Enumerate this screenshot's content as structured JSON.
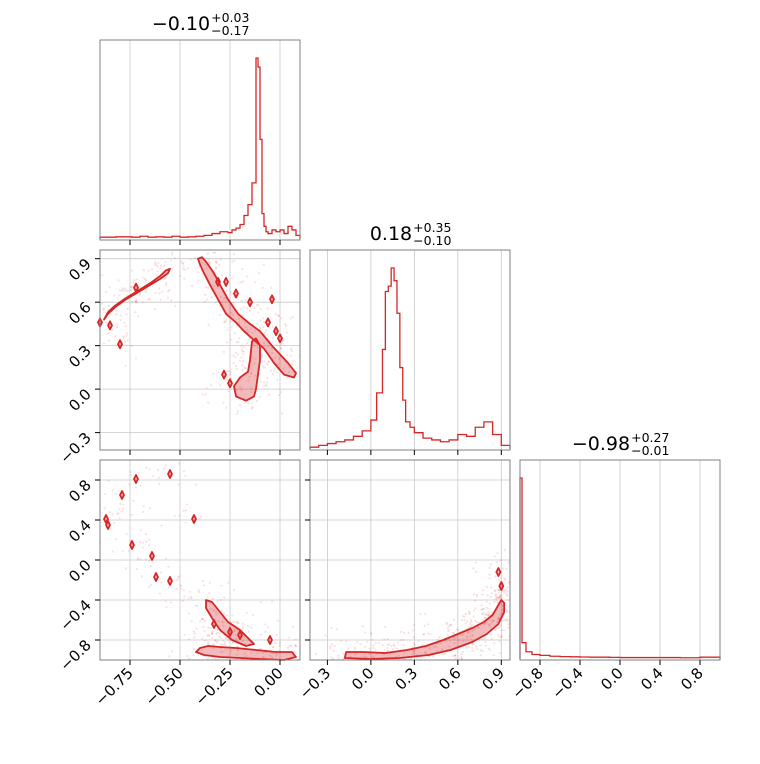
{
  "colors": {
    "accent": "#d62728",
    "grid": "#c8c8c8",
    "frame": "#808080"
  },
  "chart_data": {
    "type": "corner",
    "parameters": 3,
    "grid": true,
    "titles": [
      {
        "median": "−0.10",
        "plus": "+0.03",
        "minus": "−0.17"
      },
      {
        "median": "0.18",
        "plus": "+0.35",
        "minus": "−0.10"
      },
      {
        "median": "−0.98",
        "plus": "+0.27",
        "minus": "−0.01"
      }
    ],
    "ranges": [
      [
        -0.9,
        0.1
      ],
      [
        -0.42,
        0.96
      ],
      [
        -1.0,
        1.0
      ]
    ],
    "ticks": [
      {
        "values": [
          -0.75,
          -0.5,
          -0.25,
          0.0
        ],
        "labels": [
          "−0.75",
          "−0.50",
          "−0.25",
          "0.00"
        ]
      },
      {
        "values": [
          -0.3,
          0.0,
          0.3,
          0.6,
          0.9
        ],
        "labels": [
          "−0.3",
          "0.0",
          "0.3",
          "0.6",
          "0.9"
        ]
      },
      {
        "values": [
          -0.8,
          -0.4,
          0.0,
          0.4,
          0.8
        ],
        "labels": [
          "−0.8",
          "−0.4",
          "0.0",
          "0.4",
          "0.8"
        ]
      }
    ],
    "histograms": [
      {
        "param": 0,
        "edges": [
          -0.9,
          -0.86,
          -0.82,
          -0.78,
          -0.74,
          -0.7,
          -0.66,
          -0.62,
          -0.58,
          -0.54,
          -0.5,
          -0.46,
          -0.42,
          -0.38,
          -0.34,
          -0.3,
          -0.26,
          -0.24,
          -0.22,
          -0.2,
          -0.18,
          -0.16,
          -0.14,
          -0.12,
          -0.11,
          -0.1,
          -0.09,
          -0.08,
          -0.07,
          -0.06,
          -0.04,
          -0.02,
          0.0,
          0.02,
          0.04,
          0.06,
          0.08,
          0.1
        ],
        "counts": [
          0.01,
          0.01,
          0.012,
          0.012,
          0.01,
          0.015,
          0.01,
          0.012,
          0.01,
          0.015,
          0.01,
          0.012,
          0.015,
          0.02,
          0.03,
          0.04,
          0.035,
          0.05,
          0.06,
          0.08,
          0.13,
          0.19,
          0.31,
          1.0,
          0.95,
          0.55,
          0.14,
          0.07,
          0.04,
          0.03,
          0.05,
          0.04,
          0.05,
          0.03,
          0.07,
          0.05,
          0.02
        ]
      },
      {
        "param": 1,
        "edges": [
          -0.42,
          -0.36,
          -0.3,
          -0.24,
          -0.18,
          -0.12,
          -0.06,
          0.0,
          0.04,
          0.08,
          0.1,
          0.12,
          0.14,
          0.16,
          0.18,
          0.2,
          0.22,
          0.24,
          0.27,
          0.3,
          0.36,
          0.42,
          0.48,
          0.54,
          0.6,
          0.66,
          0.72,
          0.78,
          0.84,
          0.9,
          0.96
        ],
        "counts": [
          0.01,
          0.02,
          0.03,
          0.04,
          0.05,
          0.07,
          0.1,
          0.16,
          0.31,
          0.55,
          0.87,
          0.9,
          1.0,
          0.93,
          0.75,
          0.45,
          0.27,
          0.15,
          0.12,
          0.09,
          0.06,
          0.05,
          0.04,
          0.05,
          0.08,
          0.07,
          0.12,
          0.15,
          0.08,
          0.02
        ]
      },
      {
        "param": 2,
        "edges": [
          -1.0,
          -0.98,
          -0.94,
          -0.88,
          -0.8,
          -0.7,
          -0.6,
          -0.5,
          -0.4,
          -0.3,
          -0.2,
          -0.1,
          0.0,
          0.2,
          0.4,
          0.6,
          0.8,
          1.0
        ],
        "counts": [
          1.0,
          0.09,
          0.04,
          0.025,
          0.02,
          0.015,
          0.013,
          0.012,
          0.011,
          0.01,
          0.01,
          0.009,
          0.008,
          0.008,
          0.008,
          0.007,
          0.01
        ]
      }
    ],
    "contours": [
      {
        "x_param": 0,
        "y_param": 1,
        "regions": [
          [
            [
              -0.88,
              0.48
            ],
            [
              -0.86,
              0.53
            ],
            [
              -0.83,
              0.57
            ],
            [
              -0.78,
              0.62
            ],
            [
              -0.72,
              0.67
            ],
            [
              -0.65,
              0.73
            ],
            [
              -0.6,
              0.78
            ],
            [
              -0.57,
              0.82
            ],
            [
              -0.55,
              0.83
            ],
            [
              -0.56,
              0.8
            ],
            [
              -0.6,
              0.76
            ],
            [
              -0.66,
              0.71
            ],
            [
              -0.72,
              0.66
            ],
            [
              -0.77,
              0.62
            ],
            [
              -0.82,
              0.57
            ],
            [
              -0.86,
              0.52
            ]
          ],
          [
            [
              -0.41,
              0.9
            ],
            [
              -0.39,
              0.91
            ],
            [
              -0.37,
              0.88
            ],
            [
              -0.33,
              0.8
            ],
            [
              -0.3,
              0.72
            ],
            [
              -0.26,
              0.62
            ],
            [
              -0.21,
              0.52
            ],
            [
              -0.15,
              0.45
            ],
            [
              -0.1,
              0.4
            ],
            [
              -0.04,
              0.3
            ],
            [
              0.04,
              0.18
            ],
            [
              0.08,
              0.11
            ],
            [
              0.07,
              0.08
            ],
            [
              0.02,
              0.1
            ],
            [
              -0.03,
              0.18
            ],
            [
              -0.08,
              0.28
            ],
            [
              -0.14,
              0.35
            ],
            [
              -0.18,
              0.4
            ],
            [
              -0.22,
              0.46
            ],
            [
              -0.27,
              0.52
            ],
            [
              -0.31,
              0.62
            ],
            [
              -0.35,
              0.72
            ],
            [
              -0.38,
              0.8
            ],
            [
              -0.4,
              0.86
            ]
          ],
          [
            [
              -0.14,
              0.33
            ],
            [
              -0.12,
              0.35
            ],
            [
              -0.1,
              0.3
            ],
            [
              -0.1,
              0.2
            ],
            [
              -0.11,
              0.1
            ],
            [
              -0.12,
              0.0
            ],
            [
              -0.13,
              -0.05
            ],
            [
              -0.17,
              -0.08
            ],
            [
              -0.22,
              -0.05
            ],
            [
              -0.23,
              0.02
            ],
            [
              -0.2,
              0.08
            ],
            [
              -0.16,
              0.12
            ],
            [
              -0.15,
              0.2
            ]
          ]
        ],
        "islands": [
          [
            -0.9,
            0.46
          ],
          [
            -0.8,
            0.31
          ],
          [
            -0.85,
            0.44
          ],
          [
            -0.72,
            0.7
          ],
          [
            -0.31,
            0.74
          ],
          [
            -0.27,
            0.74
          ],
          [
            -0.22,
            0.66
          ],
          [
            -0.15,
            0.6
          ],
          [
            -0.04,
            0.62
          ],
          [
            -0.06,
            0.46
          ],
          [
            -0.02,
            0.4
          ],
          [
            0.0,
            0.35
          ],
          [
            -0.28,
            0.1
          ],
          [
            -0.25,
            0.04
          ]
        ],
        "scatter": {
          "seed": 7,
          "count": 420
        }
      },
      {
        "x_param": 0,
        "y_param": 2,
        "regions": [
          [
            [
              -0.4,
              -0.88
            ],
            [
              -0.36,
              -0.86
            ],
            [
              -0.3,
              -0.87
            ],
            [
              -0.22,
              -0.88
            ],
            [
              -0.12,
              -0.9
            ],
            [
              -0.02,
              -0.92
            ],
            [
              0.06,
              -0.92
            ],
            [
              0.08,
              -0.97
            ],
            [
              0.02,
              -1.0
            ],
            [
              -0.1,
              -0.99
            ],
            [
              -0.2,
              -0.98
            ],
            [
              -0.3,
              -0.97
            ],
            [
              -0.38,
              -0.95
            ],
            [
              -0.42,
              -0.92
            ]
          ],
          [
            [
              -0.37,
              -0.4
            ],
            [
              -0.34,
              -0.42
            ],
            [
              -0.3,
              -0.52
            ],
            [
              -0.26,
              -0.62
            ],
            [
              -0.2,
              -0.7
            ],
            [
              -0.16,
              -0.78
            ],
            [
              -0.13,
              -0.84
            ],
            [
              -0.17,
              -0.86
            ],
            [
              -0.24,
              -0.8
            ],
            [
              -0.3,
              -0.7
            ],
            [
              -0.34,
              -0.58
            ],
            [
              -0.37,
              -0.48
            ]
          ]
        ],
        "islands": [
          [
            -0.87,
            0.41
          ],
          [
            -0.86,
            0.35
          ],
          [
            -0.79,
            0.65
          ],
          [
            -0.72,
            0.81
          ],
          [
            -0.55,
            0.86
          ],
          [
            -0.74,
            0.15
          ],
          [
            -0.64,
            0.04
          ],
          [
            -0.62,
            -0.17
          ],
          [
            -0.55,
            -0.21
          ],
          [
            -0.43,
            0.41
          ],
          [
            -0.33,
            -0.64
          ],
          [
            -0.25,
            -0.72
          ],
          [
            -0.2,
            -0.75
          ],
          [
            -0.05,
            -0.8
          ]
        ],
        "scatter": {
          "seed": 19,
          "count": 380
        }
      },
      {
        "x_param": 1,
        "y_param": 2,
        "regions": [
          [
            [
              -0.17,
              -0.92
            ],
            [
              -0.05,
              -0.92
            ],
            [
              0.1,
              -0.93
            ],
            [
              0.25,
              -0.9
            ],
            [
              0.38,
              -0.86
            ],
            [
              0.5,
              -0.8
            ],
            [
              0.6,
              -0.74
            ],
            [
              0.7,
              -0.68
            ],
            [
              0.78,
              -0.62
            ],
            [
              0.84,
              -0.55
            ],
            [
              0.88,
              -0.45
            ],
            [
              0.9,
              -0.4
            ],
            [
              0.92,
              -0.43
            ],
            [
              0.92,
              -0.52
            ],
            [
              0.88,
              -0.64
            ],
            [
              0.8,
              -0.74
            ],
            [
              0.7,
              -0.82
            ],
            [
              0.55,
              -0.9
            ],
            [
              0.4,
              -0.95
            ],
            [
              0.2,
              -0.98
            ],
            [
              0.0,
              -0.99
            ],
            [
              -0.18,
              -0.98
            ]
          ]
        ],
        "islands": [
          [
            0.88,
            -0.12
          ],
          [
            0.9,
            -0.26
          ]
        ],
        "scatter": {
          "seed": 31,
          "count": 480
        }
      }
    ]
  }
}
